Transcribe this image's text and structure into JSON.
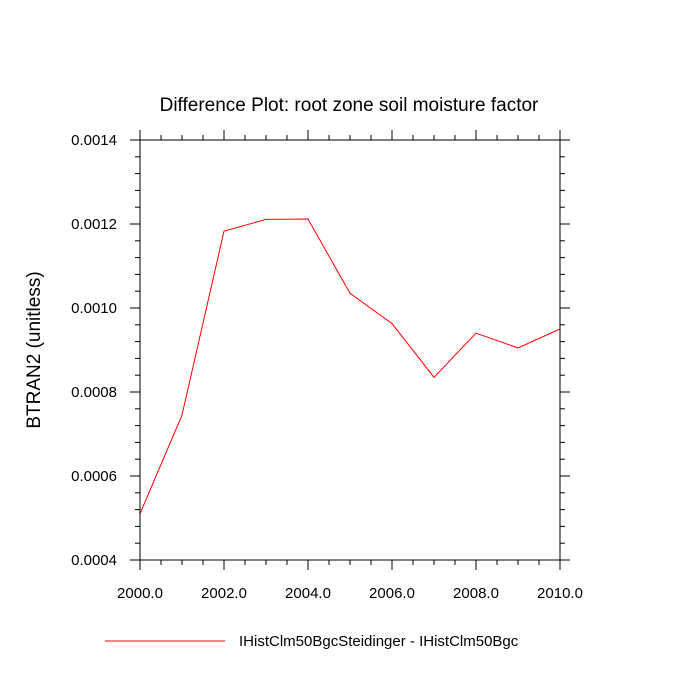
{
  "chart_data": {
    "type": "line",
    "title": "Difference Plot: root zone soil moisture factor",
    "xlabel": "",
    "ylabel": "BTRAN2  (unitless)",
    "xlim": [
      2000.0,
      2010.0
    ],
    "ylim": [
      0.0004,
      0.0014
    ],
    "x_ticks": [
      2000.0,
      2002.0,
      2004.0,
      2006.0,
      2008.0,
      2010.0
    ],
    "x_tick_labels": [
      "2000.0",
      "2002.0",
      "2004.0",
      "2006.0",
      "2008.0",
      "2010.0"
    ],
    "y_ticks": [
      0.0004,
      0.0006,
      0.0008,
      0.001,
      0.0012,
      0.0014
    ],
    "y_tick_labels": [
      "0.0004",
      "0.0006",
      "0.0008",
      "0.0010",
      "0.0012",
      "0.0014"
    ],
    "grid": false,
    "legend_position": "bottom",
    "series": [
      {
        "name": "IHistClm50BgcSteidinger - IHistClm50Bgc",
        "color": "#ff0000",
        "x": [
          2000,
          2001,
          2002,
          2003,
          2004,
          2005,
          2006,
          2007,
          2008,
          2009,
          2010
        ],
        "y": [
          0.00051,
          0.000745,
          0.001183,
          0.001211,
          0.001212,
          0.001035,
          0.000963,
          0.000835,
          0.00094,
          0.000905,
          0.00095
        ]
      }
    ]
  }
}
